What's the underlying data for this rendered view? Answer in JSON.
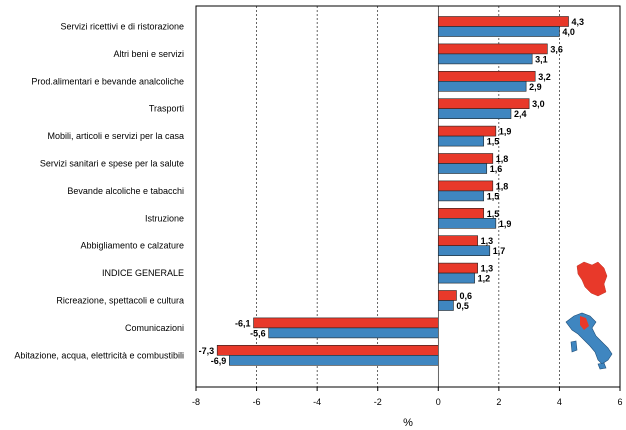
{
  "chart_data": {
    "type": "bar",
    "orientation": "horizontal",
    "title": "",
    "xlabel": "%",
    "ylabel": "",
    "xlim": [
      -8,
      6
    ],
    "xticks": [
      -8,
      -6,
      -4,
      -2,
      0,
      2,
      4,
      6
    ],
    "grid": "vertical-dashed",
    "categories": [
      "Servizi ricettivi e di ristorazione",
      "Altri beni e servizi",
      "Prod.alimentari e bevande analcoliche",
      "Trasporti",
      "Mobili, articoli e servizi per la casa",
      "Servizi sanitari e spese per la salute",
      "Bevande alcoliche e tabacchi",
      "Istruzione",
      "Abbigliamento e calzature",
      "INDICE GENERALE",
      "Ricreazione, spettacoli e cultura",
      "Comunicazioni",
      "Abitazione, acqua, elettricità e combustibili"
    ],
    "series": [
      {
        "name": "Toscana",
        "color": "#e8392a",
        "values": [
          4.3,
          3.6,
          3.2,
          3.0,
          1.9,
          1.8,
          1.8,
          1.5,
          1.3,
          1.3,
          0.6,
          -6.1,
          -7.3
        ],
        "labels": [
          "4,3",
          "3,6",
          "3,2",
          "3,0",
          "1,9",
          "1,8",
          "1,8",
          "1,5",
          "1,3",
          "1,3",
          "0,6",
          "-6,1",
          "-7,3"
        ]
      },
      {
        "name": "Italia",
        "color": "#3f86c0",
        "values": [
          4.0,
          3.1,
          2.9,
          2.4,
          1.5,
          1.6,
          1.5,
          1.9,
          1.7,
          1.2,
          0.5,
          -5.6,
          -6.9
        ],
        "labels": [
          "4,0",
          "3,1",
          "2,9",
          "2,4",
          "1,5",
          "1,6",
          "1,5",
          "1,9",
          "1,7",
          "1,2",
          "0,5",
          "-5,6",
          "-6,9"
        ]
      }
    ]
  }
}
